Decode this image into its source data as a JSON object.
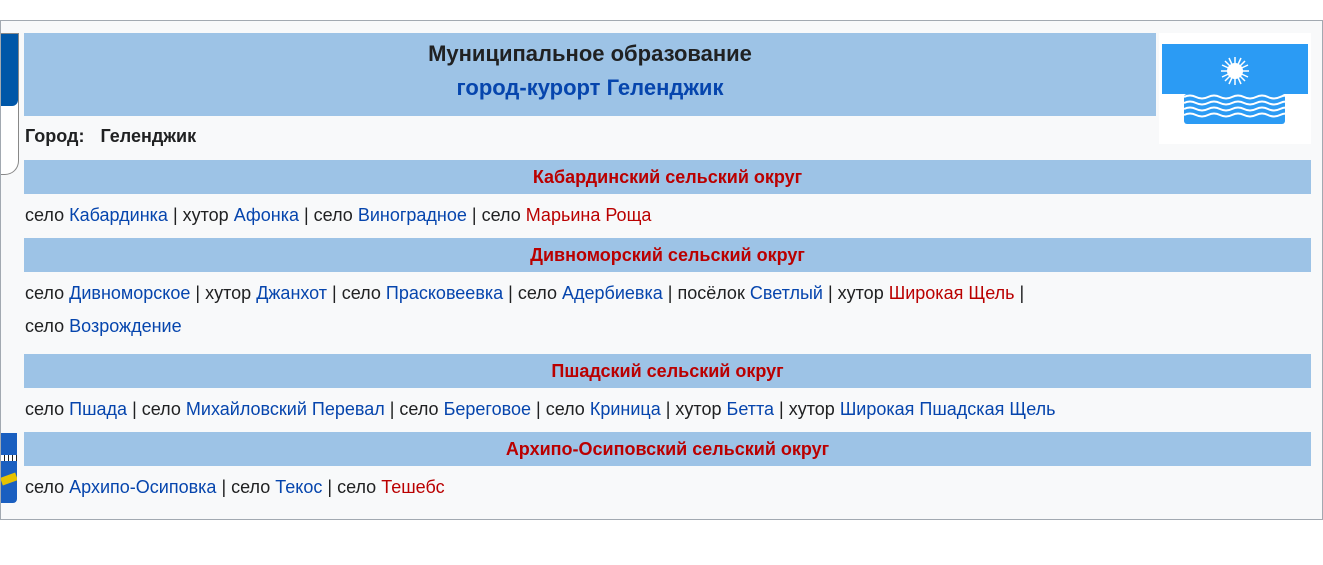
{
  "header": {
    "title": "Муниципальное образование",
    "subtitle": "город-курорт Геленджик"
  },
  "city": {
    "label": "Город:",
    "value": "Геленджик"
  },
  "colors": {
    "header_bg": "#9dc3e6",
    "link": "#0645ad",
    "redlink": "#ba0000",
    "flag_blue": "#2b9bf4"
  },
  "sections": [
    {
      "title": "Кабардинский сельский округ",
      "items": [
        {
          "type": "село",
          "name": "Кабардинка",
          "red": false
        },
        {
          "type": "хутор",
          "name": "Афонка",
          "red": false
        },
        {
          "type": "село",
          "name": "Виноградное",
          "red": false
        },
        {
          "type": "село",
          "name": "Марьина Роща",
          "red": true
        }
      ]
    },
    {
      "title": "Дивноморский сельский округ",
      "items": [
        {
          "type": "село",
          "name": "Дивноморское",
          "red": false
        },
        {
          "type": "хутор",
          "name": "Джанхот",
          "red": false
        },
        {
          "type": "село",
          "name": "Прасковеевка",
          "red": false
        },
        {
          "type": "село",
          "name": "Адербиевка",
          "red": false
        },
        {
          "type": "посёлок",
          "name": "Светлый",
          "red": false
        },
        {
          "type": "хутор",
          "name": "Широкая Щель",
          "red": true
        },
        {
          "type": "село",
          "name": "Возрождение",
          "red": false
        }
      ]
    },
    {
      "title": "Пшадский сельский округ",
      "items": [
        {
          "type": "село",
          "name": "Пшада",
          "red": false
        },
        {
          "type": "село",
          "name": "Михайловский Перевал",
          "red": false
        },
        {
          "type": "село",
          "name": "Береговое",
          "red": false
        },
        {
          "type": "село",
          "name": "Криница",
          "red": false
        },
        {
          "type": "хутор",
          "name": "Бетта",
          "red": false
        },
        {
          "type": "хутор",
          "name": "Широкая Пшадская Щель",
          "red": false
        }
      ]
    },
    {
      "title": "Архипо-Осиповский сельский округ",
      "items": [
        {
          "type": "село",
          "name": "Архипо-Осиповка",
          "red": false
        },
        {
          "type": "село",
          "name": "Текос",
          "red": false
        },
        {
          "type": "село",
          "name": "Тешебс",
          "red": true
        }
      ]
    }
  ]
}
